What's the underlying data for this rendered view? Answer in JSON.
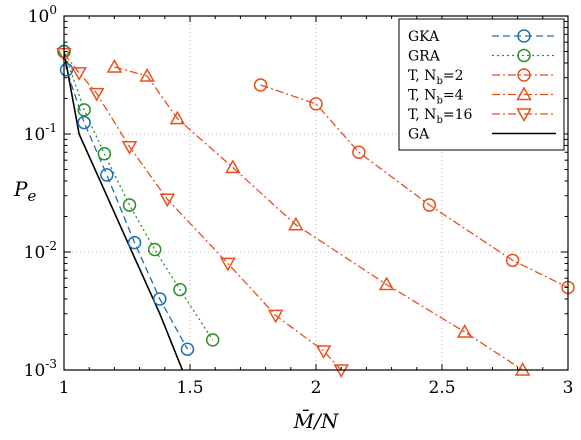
{
  "chart_data": {
    "type": "line",
    "xlabel": "M̄/N",
    "ylabel": "Pe",
    "xlim": [
      1,
      3
    ],
    "ylim": [
      0.001,
      1
    ],
    "yscale": "log",
    "grid": true,
    "legend_position": "top-right",
    "x_ticks": [
      {
        "v": 1,
        "label": "1"
      },
      {
        "v": 1.5,
        "label": "1.5"
      },
      {
        "v": 2,
        "label": "2"
      },
      {
        "v": 2.5,
        "label": "2.5"
      },
      {
        "v": 3,
        "label": "3"
      }
    ],
    "y_ticks": [
      {
        "v": 0.001,
        "base": "10",
        "exp": "-3"
      },
      {
        "v": 0.01,
        "base": "10",
        "exp": "-2"
      },
      {
        "v": 0.1,
        "base": "10",
        "exp": "-1"
      },
      {
        "v": 1,
        "base": "10",
        "exp": "0"
      }
    ],
    "series": [
      {
        "name": "GKA",
        "color": "#1f6fb5",
        "dash": "dash",
        "marker": "circle",
        "marker_every": 1,
        "x": [
          1.0,
          1.01,
          1.08,
          1.17,
          1.28,
          1.38,
          1.49
        ],
        "y": [
          0.5,
          0.35,
          0.125,
          0.045,
          0.012,
          0.004,
          0.0015
        ]
      },
      {
        "name": "GRA",
        "color": "#2a8f2a",
        "dash": "dot",
        "marker": "circle",
        "marker_every": 1,
        "x": [
          1.0,
          1.08,
          1.16,
          1.26,
          1.36,
          1.46,
          1.59
        ],
        "y": [
          0.5,
          0.16,
          0.068,
          0.025,
          0.0105,
          0.0048,
          0.0018
        ]
      },
      {
        "name": "T, N",
        "name_sub": "b",
        "name_suffix": "=2",
        "color": "#e8501c",
        "dash": "dashdot",
        "marker": "circle",
        "marker_every": 1,
        "x": [
          1.78,
          2.0,
          2.17,
          2.45,
          2.78,
          3.0
        ],
        "y": [
          0.26,
          0.18,
          0.07,
          0.025,
          0.0085,
          0.005
        ]
      },
      {
        "name": "T, N",
        "name_sub": "b",
        "name_suffix": "=4",
        "color": "#e8501c",
        "dash": "dashdot",
        "marker": "triangle-up",
        "marker_every": 1,
        "x": [
          1.2,
          1.33,
          1.45,
          1.67,
          1.92,
          2.28,
          2.59,
          2.82
        ],
        "y": [
          0.37,
          0.31,
          0.135,
          0.052,
          0.017,
          0.0053,
          0.0021,
          0.001
        ]
      },
      {
        "name": "T, N",
        "name_sub": "b",
        "name_suffix": "=16",
        "color": "#e8501c",
        "dash": "dashdot",
        "marker": "triangle-down",
        "marker_every": 1,
        "x": [
          1.0,
          1.06,
          1.13,
          1.26,
          1.41,
          1.65,
          1.84,
          2.03,
          2.1
        ],
        "y": [
          0.48,
          0.33,
          0.22,
          0.078,
          0.028,
          0.008,
          0.0029,
          0.00145,
          0.001
        ]
      },
      {
        "name": "GA",
        "color": "#000000",
        "dash": "solid",
        "marker": "none",
        "x": [
          1.0,
          1.06,
          1.17,
          1.27,
          1.38,
          1.47
        ],
        "y": [
          0.5,
          0.1,
          0.03,
          0.01,
          0.003,
          0.001
        ]
      }
    ]
  }
}
